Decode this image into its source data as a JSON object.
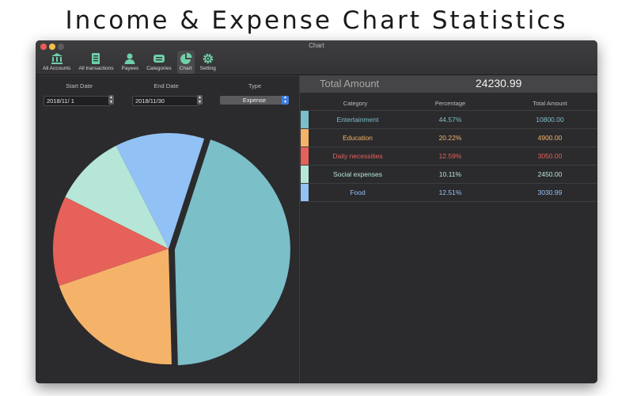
{
  "headline": "Income & Expense Chart Statistics",
  "window": {
    "title": "Chart"
  },
  "toolbar": [
    {
      "label": "All Accounts",
      "icon": "bank-icon"
    },
    {
      "label": "All transactions",
      "icon": "document-icon"
    },
    {
      "label": "Payees",
      "icon": "person-icon"
    },
    {
      "label": "Categories",
      "icon": "tag-icon"
    },
    {
      "label": "Chart",
      "icon": "pie-chart-icon",
      "active": true
    },
    {
      "label": "Setting",
      "icon": "gear-icon"
    }
  ],
  "filters": {
    "start_label": "Start Date",
    "start_value": "2018/11/  1",
    "end_label": "End Date",
    "end_value": "2018/11/30",
    "type_label": "Type",
    "type_value": "Expense"
  },
  "total": {
    "label": "Total Amount",
    "value": "24230.99"
  },
  "table": {
    "headers": [
      "Category",
      "Percentage",
      "Total Amount"
    ],
    "rows": [
      {
        "category": "Entertainment",
        "percentage": "44.57%",
        "amount": "10800.00",
        "color": "#7bbfc9"
      },
      {
        "category": "Education",
        "percentage": "20.22%",
        "amount": "4900.00",
        "color": "#f5b36a"
      },
      {
        "category": "Daily necessities",
        "percentage": "12.59%",
        "amount": "3050.00",
        "color": "#e56159"
      },
      {
        "category": "Social expenses",
        "percentage": "10.11%",
        "amount": "2450.00",
        "color": "#b6e6d8"
      },
      {
        "category": "Food",
        "percentage": "12.51%",
        "amount": "3030.99",
        "color": "#92c1f5"
      }
    ]
  },
  "chart_data": {
    "type": "pie",
    "categories": [
      "Entertainment",
      "Education",
      "Daily necessities",
      "Social expenses",
      "Food"
    ],
    "values": [
      10800.0,
      4900.0,
      3050.0,
      2450.0,
      3030.99
    ],
    "colors": [
      "#7bbfc9",
      "#f5b36a",
      "#e56159",
      "#b6e6d8",
      "#92c1f5"
    ],
    "exploded": "Entertainment",
    "legend": "none"
  }
}
